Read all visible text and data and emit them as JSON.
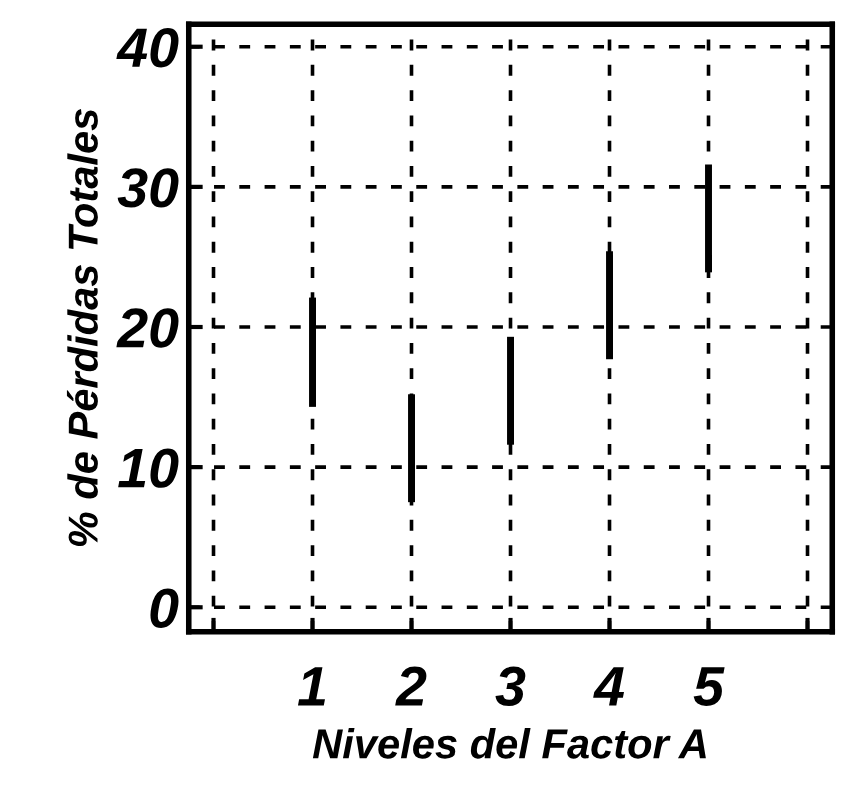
{
  "chart_data": {
    "type": "bar",
    "xlabel": "Niveles del Factor A",
    "ylabel": "% de Pérdidas Totales",
    "x": [
      1,
      2,
      3,
      4,
      5
    ],
    "base": [
      14.3,
      7.5,
      11.6,
      17.7,
      23.9
    ],
    "values": [
      7.8,
      7.7,
      7.7,
      7.7,
      7.7
    ],
    "color": "#000000",
    "xlim": [
      -0.25,
      6.25
    ],
    "xticks": [
      {
        "value": 0,
        "label": null
      },
      1,
      2,
      3,
      4,
      5,
      {
        "value": 6,
        "label": null
      }
    ],
    "ylim": [
      -1.75,
      41.6
    ],
    "yticks": [
      0,
      10,
      20,
      30,
      40
    ],
    "grid": true,
    "legend": false
  }
}
